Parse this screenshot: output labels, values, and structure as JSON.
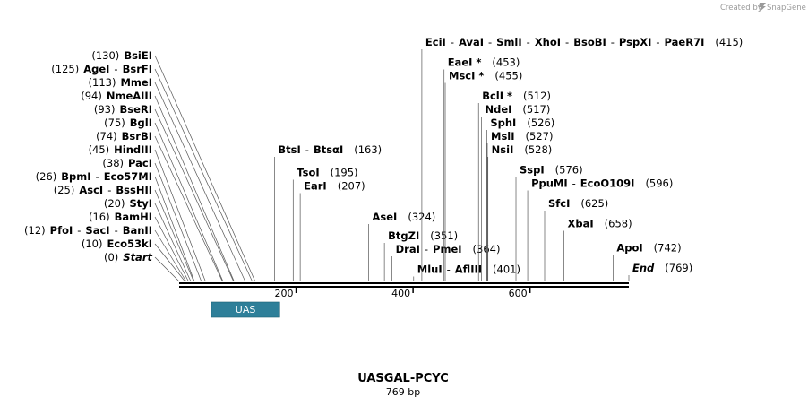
{
  "watermark": {
    "text": "Created by",
    "brand": "SnapGene"
  },
  "map": {
    "name": "UASGAL-PCYC",
    "length_label": "769 bp",
    "length": 769,
    "ticks": [
      {
        "label": "200",
        "pos": 200
      },
      {
        "label": "400",
        "pos": 400
      },
      {
        "label": "600",
        "pos": 600
      }
    ],
    "features": [
      {
        "name": "UAS",
        "start": 55,
        "end": 172,
        "color": "#2e7f99"
      }
    ],
    "sites": [
      {
        "parts": [
          "BsiEI"
        ],
        "pos_label": "(130)",
        "pos": 130,
        "side": "left",
        "row": 0
      },
      {
        "parts": [
          "AgeI",
          "BsrFI"
        ],
        "pos_label": "(125)",
        "pos": 125,
        "side": "left",
        "row": 1
      },
      {
        "parts": [
          "MmeI"
        ],
        "pos_label": "(113)",
        "pos": 113,
        "side": "left",
        "row": 2
      },
      {
        "parts": [
          "NmeAIII"
        ],
        "pos_label": "(94)",
        "pos": 94,
        "side": "left",
        "row": 3
      },
      {
        "parts": [
          "BseRI"
        ],
        "pos_label": "(93)",
        "pos": 93,
        "side": "left",
        "row": 4
      },
      {
        "parts": [
          "BglI"
        ],
        "pos_label": "(75)",
        "pos": 75,
        "side": "left",
        "row": 5
      },
      {
        "parts": [
          "BsrBI"
        ],
        "pos_label": "(74)",
        "pos": 74,
        "side": "left",
        "row": 6
      },
      {
        "parts": [
          "HindIII"
        ],
        "pos_label": "(45)",
        "pos": 45,
        "side": "left",
        "row": 7
      },
      {
        "parts": [
          "PacI"
        ],
        "pos_label": "(38)",
        "pos": 38,
        "side": "left",
        "row": 8
      },
      {
        "parts": [
          "BpmI",
          "Eco57MI"
        ],
        "pos_label": "(26)",
        "pos": 26,
        "side": "left",
        "row": 9
      },
      {
        "parts": [
          "AscI",
          "BssHII"
        ],
        "pos_label": "(25)",
        "pos": 25,
        "side": "left",
        "row": 10
      },
      {
        "parts": [
          "StyI"
        ],
        "pos_label": "(20)",
        "pos": 20,
        "side": "left",
        "row": 11
      },
      {
        "parts": [
          "BamHI"
        ],
        "pos_label": "(16)",
        "pos": 16,
        "side": "left",
        "row": 12
      },
      {
        "parts": [
          "PfoI",
          "SacI",
          "BanII"
        ],
        "pos_label": "(12)",
        "pos": 12,
        "side": "left",
        "row": 13
      },
      {
        "parts": [
          "Eco53kI"
        ],
        "pos_label": "(10)",
        "pos": 10,
        "side": "left",
        "row": 14
      },
      {
        "parts": [
          "Start"
        ],
        "pos_label": "(0)",
        "pos": 0,
        "side": "left",
        "row": 15,
        "italic": true
      },
      {
        "parts": [
          "BtsI",
          "BtsαI"
        ],
        "pos_label": "(163)",
        "pos": 163,
        "side": "right",
        "row": 7
      },
      {
        "parts": [
          "TsoI"
        ],
        "pos_label": "(195)",
        "pos": 195,
        "side": "right",
        "row": 8.7
      },
      {
        "parts": [
          "EarI"
        ],
        "pos_label": "(207)",
        "pos": 207,
        "side": "right",
        "row": 9.7
      },
      {
        "parts": [
          "AseI"
        ],
        "pos_label": "(324)",
        "pos": 324,
        "side": "right",
        "row": 12
      },
      {
        "parts": [
          "BtgZI"
        ],
        "pos_label": "(351)",
        "pos": 351,
        "side": "right",
        "row": 13.4
      },
      {
        "parts": [
          "DraI",
          "PmeI"
        ],
        "pos_label": "(364)",
        "pos": 364,
        "side": "right",
        "row": 14.4
      },
      {
        "parts": [
          "MluI",
          "AflIII"
        ],
        "pos_label": "(401)",
        "pos": 401,
        "side": "right",
        "row": 15.9
      },
      {
        "parts": [
          "EciI",
          "AvaI",
          "SmlI",
          "XhoI",
          "BsoBI",
          "PspXI",
          "PaeR7I"
        ],
        "pos_label": "(415)",
        "pos": 415,
        "side": "right",
        "row": -1
      },
      {
        "parts": [
          "EaeI *"
        ],
        "pos_label": "(453)",
        "pos": 453,
        "side": "right",
        "row": 0.5
      },
      {
        "parts": [
          "MscI *"
        ],
        "pos_label": "(455)",
        "pos": 455,
        "side": "right",
        "row": 1.5
      },
      {
        "parts": [
          "BclI *"
        ],
        "pos_label": "(512)",
        "pos": 512,
        "side": "right",
        "row": 3
      },
      {
        "parts": [
          "NdeI"
        ],
        "pos_label": "(517)",
        "pos": 517,
        "side": "right",
        "row": 4
      },
      {
        "parts": [
          "SphI"
        ],
        "pos_label": "(526)",
        "pos": 526,
        "side": "right",
        "row": 5
      },
      {
        "parts": [
          "MslI"
        ],
        "pos_label": "(527)",
        "pos": 527,
        "side": "right",
        "row": 6
      },
      {
        "parts": [
          "NsiI"
        ],
        "pos_label": "(528)",
        "pos": 528,
        "side": "right",
        "row": 7
      },
      {
        "parts": [
          "SspI"
        ],
        "pos_label": "(576)",
        "pos": 576,
        "side": "right",
        "row": 8.5
      },
      {
        "parts": [
          "PpuMI",
          "EcoO109I"
        ],
        "pos_label": "(596)",
        "pos": 596,
        "side": "right",
        "row": 9.5
      },
      {
        "parts": [
          "SfcI"
        ],
        "pos_label": "(625)",
        "pos": 625,
        "side": "right",
        "row": 11
      },
      {
        "parts": [
          "XbaI"
        ],
        "pos_label": "(658)",
        "pos": 658,
        "side": "right",
        "row": 12.5
      },
      {
        "parts": [
          "ApoI"
        ],
        "pos_label": "(742)",
        "pos": 742,
        "side": "right",
        "row": 14.3
      },
      {
        "parts": [
          "End"
        ],
        "pos_label": "(769)",
        "pos": 769,
        "side": "right",
        "row": 15.8,
        "italic": true
      }
    ]
  }
}
